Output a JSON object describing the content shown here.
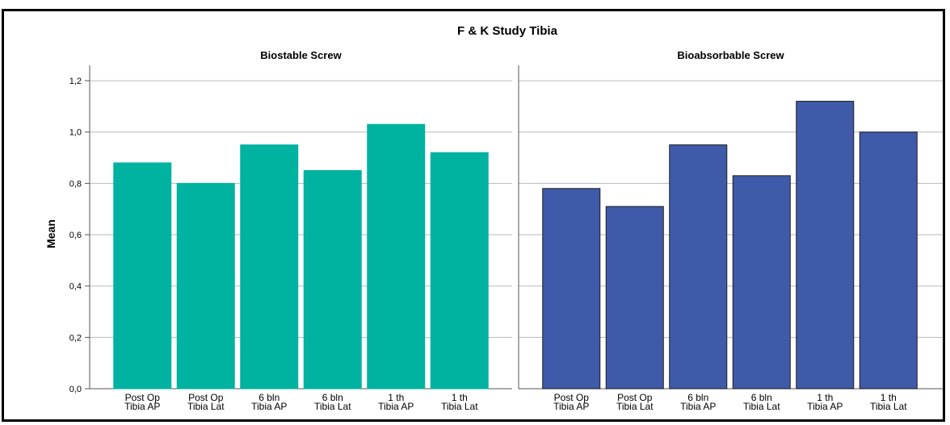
{
  "chart_data": {
    "type": "bar",
    "title": "F & K Study Tibia",
    "ylabel": "Mean",
    "xlabel": "",
    "ylim": [
      0,
      1.26
    ],
    "yticks": [
      "0,0",
      "0,2",
      "0,4",
      "0,6",
      "0,8",
      "1,0",
      "1,2"
    ],
    "ytick_values": [
      0,
      0.2,
      0.4,
      0.6,
      0.8,
      1.0,
      1.2
    ],
    "grid": true,
    "categories": [
      [
        "Post Op",
        "Tibia AP"
      ],
      [
        "Post Op",
        "Tibia Lat"
      ],
      [
        "6 bln",
        "Tibia AP"
      ],
      [
        "6 bln",
        "Tibia Lat"
      ],
      [
        "1 th",
        "Tibia AP"
      ],
      [
        "1 th",
        "Tibia Lat"
      ]
    ],
    "panels": [
      {
        "name": "Biostable Screw",
        "color": "#00b2a0",
        "outline": "#00b2a0",
        "values": [
          0.88,
          0.8,
          0.95,
          0.85,
          1.03,
          0.92
        ]
      },
      {
        "name": "Bioabsorbable Screw",
        "color": "#3f5aa9",
        "outline": "#1b1b1b",
        "values": [
          0.78,
          0.71,
          0.95,
          0.83,
          1.12,
          1.0
        ]
      }
    ]
  }
}
